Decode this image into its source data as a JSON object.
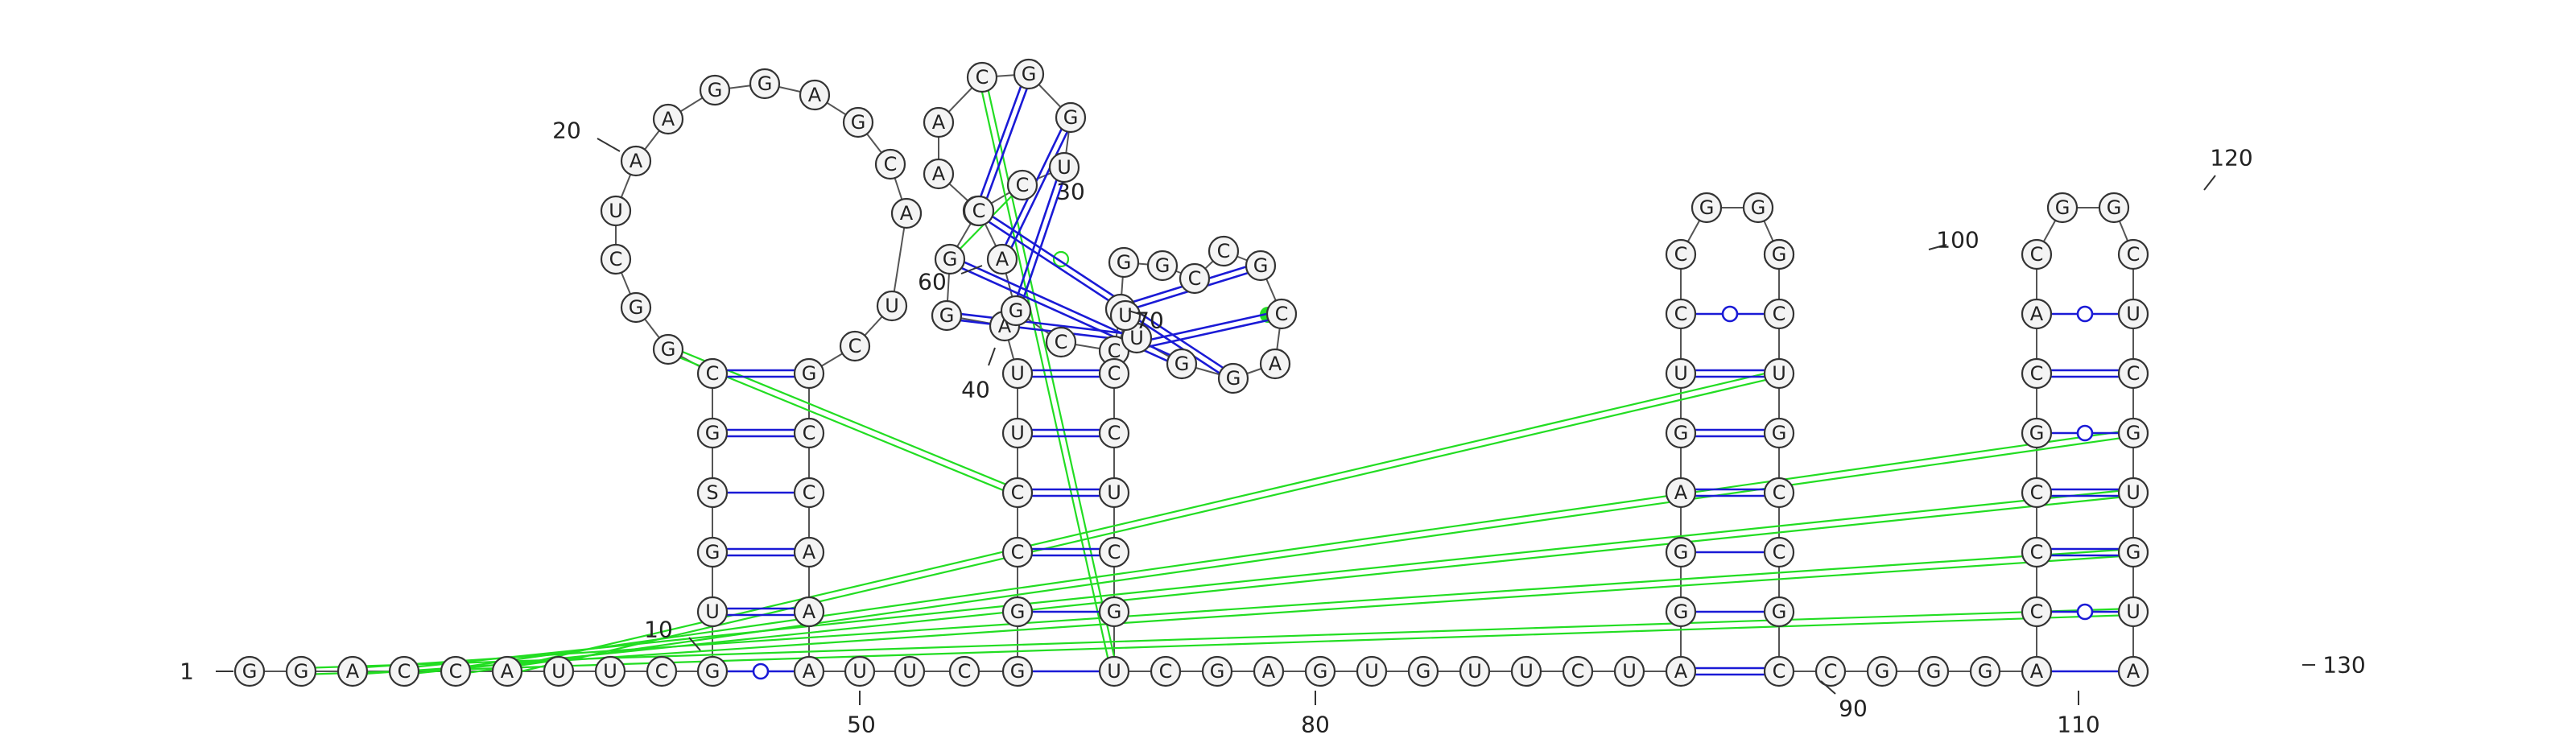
{
  "sequence": "GGACCAUUCGUGSGCGGCUAAGGAGCAUCGCCAAAUUCGGCCUUAGGGCUGGCAACAGCCCGGCCGCAGGUUCCUCGUCGAGUGUUCUAGGAGUCCGGCGCUGCCGCCGGGACCCGCACGGCUCGUGUA",
  "labels": [
    {
      "text": "1"
    },
    {
      "text": "10"
    },
    {
      "text": "20"
    },
    {
      "text": "30"
    },
    {
      "text": "40"
    },
    {
      "text": "50"
    },
    {
      "text": "60"
    },
    {
      "text": "70"
    },
    {
      "text": "80"
    },
    {
      "text": "90"
    },
    {
      "text": "100"
    },
    {
      "text": "110"
    },
    {
      "text": "120"
    },
    {
      "text": "130"
    }
  ]
}
